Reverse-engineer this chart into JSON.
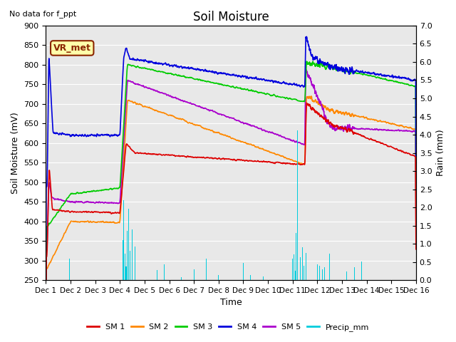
{
  "title": "Soil Moisture",
  "subtitle": "No data for f_ppt",
  "ylabel_left": "Soil Moisture (mV)",
  "ylabel_right": "Rain (mm)",
  "xlabel": "Time",
  "box_label": "VR_met",
  "ylim_left": [
    250,
    900
  ],
  "ylim_right": [
    0.0,
    7.0
  ],
  "yticks_left": [
    250,
    300,
    350,
    400,
    450,
    500,
    550,
    600,
    650,
    700,
    750,
    800,
    850,
    900
  ],
  "yticks_right": [
    0.0,
    0.5,
    1.0,
    1.5,
    2.0,
    2.5,
    3.0,
    3.5,
    4.0,
    4.5,
    5.0,
    5.5,
    6.0,
    6.5,
    7.0
  ],
  "xtick_labels": [
    "Dec 1",
    "Dec 2",
    "Dec 3",
    "Dec 4",
    "Dec 5",
    "Dec 6",
    "Dec 7",
    "Dec 8",
    "Dec 9",
    "Dec 10",
    "Dec 11",
    "Dec 12",
    "Dec 13",
    "Dec 14",
    "Dec 15",
    "Dec 16"
  ],
  "colors": {
    "SM1": "#dd0000",
    "SM2": "#ff8800",
    "SM3": "#00cc00",
    "SM4": "#0000dd",
    "SM5": "#aa00cc",
    "Precip": "#00ccdd",
    "background": "#e8e8e8"
  },
  "legend_entries": [
    "SM 1",
    "SM 2",
    "SM 3",
    "SM 4",
    "SM 5",
    "Precip_mm"
  ],
  "figsize": [
    6.4,
    4.8
  ],
  "dpi": 100
}
